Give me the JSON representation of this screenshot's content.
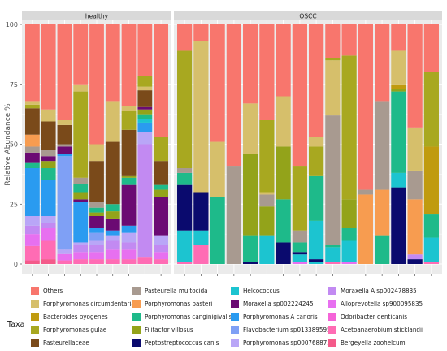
{
  "chart_data": {
    "type": "bar",
    "stacked": true,
    "ylabel": "Relative Abundance  %",
    "ylim": [
      0,
      100
    ],
    "yticks": [
      "0",
      "25",
      "50",
      "75",
      "100"
    ],
    "grid": true,
    "legend_position": "bottom",
    "legend_title": "Taxa",
    "facets": [
      "healthy",
      "OSCC"
    ],
    "taxa": [
      {
        "name": "Others",
        "color": "#F8766D"
      },
      {
        "name": "Porphyromonas circumdentaria",
        "color": "#D6BF6B"
      },
      {
        "name": "Bacteroides pyogenes",
        "color": "#C09B0F"
      },
      {
        "name": "Porphyromonas gulae",
        "color": "#A8A820"
      },
      {
        "name": "Pasteurellaceae",
        "color": "#7A4A1A"
      },
      {
        "name": "Pasteurella multocida",
        "color": "#A89A90"
      },
      {
        "name": "Porphyromonas pasteri",
        "color": "#F79C50"
      },
      {
        "name": "Porphyromonas canginigivalis",
        "color": "#1EBA8A"
      },
      {
        "name": "Filifactor villosus",
        "color": "#93A31A"
      },
      {
        "name": "Peptostreptococcus canis",
        "color": "#0A0A6E"
      },
      {
        "name": "Helcococcus",
        "color": "#1CC4D0"
      },
      {
        "name": "Moraxella sp002224245",
        "color": "#6B0A73"
      },
      {
        "name": "Porphyromonas A canoris",
        "color": "#2A9BF0"
      },
      {
        "name": "Flavobacterium sp013389595",
        "color": "#7FA0F5"
      },
      {
        "name": "Porphyromonas sp000768875",
        "color": "#B9A6F7"
      },
      {
        "name": "Moraxella A sp002478835",
        "color": "#C28AF2"
      },
      {
        "name": "Alloprevotella sp900095835",
        "color": "#E770F0"
      },
      {
        "name": "Odoribacter denticanis",
        "color": "#F564D8"
      },
      {
        "name": "Acetoanaerobium sticklandii",
        "color": "#FF6CB4"
      },
      {
        "name": "Bergeyella zoohelcum",
        "color": "#F45A8A"
      }
    ],
    "samples": [
      {
        "facet": "healthy",
        "segments": [
          [
            "Bergeyella zoohelcum",
            1.5
          ],
          [
            "Acetoanaerobium sticklandii",
            6
          ],
          [
            "Alloprevotella sp900095835",
            5
          ],
          [
            "Moraxella A sp002478835",
            3.5
          ],
          [
            "Porphyromonas sp000768875",
            4
          ],
          [
            "Porphyromonas A canoris",
            20
          ],
          [
            "Porphyromonas canginigivalis",
            2.5
          ],
          [
            "Moraxella sp002224245",
            4
          ],
          [
            "Pasteurella multocida",
            2.5
          ],
          [
            "Porphyromonas pasteri",
            5
          ],
          [
            "Pasteurellaceae",
            11
          ],
          [
            "Porphyromonas gulae",
            1.5
          ],
          [
            "Porphyromonas circumdentaria",
            1.5
          ],
          [
            "Others",
            32
          ]
        ]
      },
      {
        "facet": "healthy",
        "segments": [
          [
            "Bergeyella zoohelcum",
            2
          ],
          [
            "Acetoanaerobium sticklandii",
            8
          ],
          [
            "Alloprevotella sp900095835",
            5
          ],
          [
            "Moraxella A sp002478835",
            2
          ],
          [
            "Porphyromonas sp000768875",
            3
          ],
          [
            "Porphyromonas A canoris",
            15
          ],
          [
            "Porphyromonas canginigivalis",
            5
          ],
          [
            "Filifactor villosus",
            3
          ],
          [
            "Moraxella sp002224245",
            2
          ],
          [
            "Pasteurella multocida",
            2.5
          ],
          [
            "Pasteurellaceae",
            12
          ],
          [
            "Porphyromonas circumdentaria",
            5
          ],
          [
            "Others",
            35.5
          ]
        ]
      },
      {
        "facet": "healthy",
        "segments": [
          [
            "Acetoanaerobium sticklandii",
            1.5
          ],
          [
            "Alloprevotella sp900095835",
            3
          ],
          [
            "Porphyromonas sp000768875",
            1.5
          ],
          [
            "Flavobacterium sp013389595",
            39
          ],
          [
            "Porphyromonas A canoris",
            1
          ],
          [
            "Moraxella sp002224245",
            3
          ],
          [
            "Pasteurella multocida",
            1
          ],
          [
            "Pasteurellaceae",
            8
          ],
          [
            "Porphyromonas circumdentaria",
            2
          ],
          [
            "Others",
            40
          ]
        ]
      },
      {
        "facet": "healthy",
        "segments": [
          [
            "Acetoanaerobium sticklandii",
            2
          ],
          [
            "Alloprevotella sp900095835",
            3
          ],
          [
            "Moraxella A sp002478835",
            3
          ],
          [
            "Porphyromonas sp000768875",
            1
          ],
          [
            "Porphyromonas A canoris",
            17
          ],
          [
            "Moraxella sp002224245",
            1
          ],
          [
            "Filifactor villosus",
            3
          ],
          [
            "Porphyromonas canginigivalis",
            3.5
          ],
          [
            "Pasteurella multocida",
            2.5
          ],
          [
            "Porphyromonas gulae",
            36
          ],
          [
            "Porphyromonas circumdentaria",
            3
          ],
          [
            "Others",
            25
          ]
        ]
      },
      {
        "facet": "healthy",
        "segments": [
          [
            "Acetoanaerobium sticklandii",
            2
          ],
          [
            "Alloprevotella sp900095835",
            3
          ],
          [
            "Moraxella A sp002478835",
            3
          ],
          [
            "Porphyromonas sp000768875",
            2
          ],
          [
            "Flavobacterium sp013389595",
            3
          ],
          [
            "Porphyromonas A canoris",
            2
          ],
          [
            "Moraxella sp002224245",
            5
          ],
          [
            "Filifactor villosus",
            1.5
          ],
          [
            "Porphyromonas canginigivalis",
            2
          ],
          [
            "Pasteurella multocida",
            2.5
          ],
          [
            "Pasteurellaceae",
            17
          ],
          [
            "Porphyromonas circumdentaria",
            7
          ],
          [
            "Others",
            50
          ]
        ]
      },
      {
        "facet": "healthy",
        "segments": [
          [
            "Acetoanaerobium sticklandii",
            2
          ],
          [
            "Alloprevotella sp900095835",
            4
          ],
          [
            "Moraxella A sp002478835",
            4
          ],
          [
            "Porphyromonas sp000768875",
            2
          ],
          [
            "Porphyromonas A canoris",
            2
          ],
          [
            "Moraxella sp002224245",
            5
          ],
          [
            "Filifactor villosus",
            3
          ],
          [
            "Porphyromonas canginigivalis",
            3
          ],
          [
            "Pasteurellaceae",
            26
          ],
          [
            "Porphyromonas circumdentaria",
            17
          ],
          [
            "Others",
            32
          ]
        ]
      },
      {
        "facet": "healthy",
        "segments": [
          [
            "Acetoanaerobium sticklandii",
            2
          ],
          [
            "Alloprevotella sp900095835",
            4
          ],
          [
            "Moraxella A sp002478835",
            3
          ],
          [
            "Porphyromonas sp000768875",
            4
          ],
          [
            "Porphyromonas A canoris",
            3
          ],
          [
            "Moraxella sp002224245",
            17
          ],
          [
            "Porphyromonas canginigivalis",
            3
          ],
          [
            "Filifactor villosus",
            1
          ],
          [
            "Pasteurellaceae",
            19
          ],
          [
            "Porphyromonas gulae",
            8
          ],
          [
            "Porphyromonas circumdentaria",
            2
          ],
          [
            "Others",
            34
          ]
        ]
      },
      {
        "facet": "healthy",
        "segments": [
          [
            "Acetoanaerobium sticklandii",
            3
          ],
          [
            "Moraxella A sp002478835",
            47
          ],
          [
            "Porphyromonas sp000768875",
            5
          ],
          [
            "Porphyromonas A canoris",
            4
          ],
          [
            "Helcococcus",
            1.5
          ],
          [
            "Porphyromonas canginigivalis",
            2
          ],
          [
            "Filifactor villosus",
            2
          ],
          [
            "Moraxella sp002224245",
            1
          ],
          [
            "Pasteurellaceae",
            7
          ],
          [
            "Porphyromonas circumdentaria",
            1.5
          ],
          [
            "Porphyromonas gulae",
            4.5
          ],
          [
            "Others",
            21.5
          ]
        ]
      },
      {
        "facet": "healthy",
        "segments": [
          [
            "Acetoanaerobium sticklandii",
            2
          ],
          [
            "Alloprevotella sp900095835",
            3
          ],
          [
            "Moraxella A sp002478835",
            3
          ],
          [
            "Porphyromonas sp000768875",
            4
          ],
          [
            "Moraxella sp002224245",
            16
          ],
          [
            "Filifactor villosus",
            3
          ],
          [
            "Porphyromonas canginigivalis",
            2
          ],
          [
            "Pasteurellaceae",
            10
          ],
          [
            "Porphyromonas gulae",
            10
          ],
          [
            "Others",
            47
          ]
        ]
      },
      {
        "facet": "OSCC",
        "segments": [
          [
            "Acetoanaerobium sticklandii",
            1
          ],
          [
            "Helcococcus",
            13
          ],
          [
            "Peptostreptococcus canis",
            19
          ],
          [
            "Porphyromonas canginigivalis",
            5
          ],
          [
            "Pasteurella multocida",
            2
          ],
          [
            "Porphyromonas gulae",
            49
          ],
          [
            "Others",
            11
          ]
        ]
      },
      {
        "facet": "OSCC",
        "segments": [
          [
            "Acetoanaerobium sticklandii",
            8
          ],
          [
            "Helcococcus",
            6
          ],
          [
            "Peptostreptococcus canis",
            16
          ],
          [
            "Porphyromonas circumdentaria",
            63
          ],
          [
            "Others",
            7
          ]
        ]
      },
      {
        "facet": "OSCC",
        "segments": [
          [
            "Porphyromonas canginigivalis",
            28
          ],
          [
            "Porphyromonas circumdentaria",
            23
          ],
          [
            "Others",
            49
          ]
        ]
      },
      {
        "facet": "OSCC",
        "segments": [
          [
            "Pasteurella multocida",
            41
          ],
          [
            "Others",
            59
          ]
        ]
      },
      {
        "facet": "OSCC",
        "segments": [
          [
            "Peptostreptococcus canis",
            1
          ],
          [
            "Porphyromonas canginigivalis",
            11
          ],
          [
            "Filifactor villosus",
            34
          ],
          [
            "Porphyromonas circumdentaria",
            21
          ],
          [
            "Others",
            33
          ]
        ]
      },
      {
        "facet": "OSCC",
        "segments": [
          [
            "Helcococcus",
            12
          ],
          [
            "Filifactor villosus",
            12
          ],
          [
            "Pasteurella multocida",
            5
          ],
          [
            "Porphyromonas circumdentaria",
            1
          ],
          [
            "Porphyromonas gulae",
            30
          ],
          [
            "Others",
            40
          ]
        ]
      },
      {
        "facet": "OSCC",
        "segments": [
          [
            "Peptostreptococcus canis",
            9
          ],
          [
            "Porphyromonas canginigivalis",
            18
          ],
          [
            "Filifactor villosus",
            22
          ],
          [
            "Porphyromonas circumdentaria",
            21
          ],
          [
            "Others",
            30
          ]
        ]
      },
      {
        "facet": "OSCC",
        "segments": [
          [
            "Alloprevotella sp900095835",
            1
          ],
          [
            "Helcococcus",
            3
          ],
          [
            "Peptostreptococcus canis",
            1
          ],
          [
            "Porphyromonas canginigivalis",
            4
          ],
          [
            "Pasteurella multocida",
            5
          ],
          [
            "Porphyromonas gulae",
            27
          ],
          [
            "Others",
            59
          ]
        ]
      },
      {
        "facet": "OSCC",
        "segments": [
          [
            "Helcococcus",
            1
          ],
          [
            "Peptostreptococcus canis",
            1
          ],
          [
            "Helcococcus",
            16
          ],
          [
            "Porphyromonas canginigivalis",
            19
          ],
          [
            "Porphyromonas gulae",
            12
          ],
          [
            "Porphyromonas circumdentaria",
            4
          ],
          [
            "Others",
            47
          ]
        ]
      },
      {
        "facet": "OSCC",
        "segments": [
          [
            "Acetoanaerobium sticklandii",
            1
          ],
          [
            "Helcococcus",
            6
          ],
          [
            "Porphyromonas canginigivalis",
            1
          ],
          [
            "Pasteurella multocida",
            54
          ],
          [
            "Porphyromonas circumdentaria",
            23
          ],
          [
            "Porphyromonas gulae",
            1
          ],
          [
            "Others",
            14
          ]
        ]
      },
      {
        "facet": "OSCC",
        "segments": [
          [
            "Alloprevotella sp900095835",
            1
          ],
          [
            "Helcococcus",
            9
          ],
          [
            "Porphyromonas canginigivalis",
            5
          ],
          [
            "Filifactor villosus",
            12
          ],
          [
            "Porphyromonas gulae",
            60
          ],
          [
            "Others",
            13
          ]
        ]
      },
      {
        "facet": "OSCC",
        "segments": [
          [
            "Porphyromonas pasteri",
            29
          ],
          [
            "Pasteurella multocida",
            2
          ],
          [
            "Others",
            69
          ]
        ]
      },
      {
        "facet": "OSCC",
        "segments": [
          [
            "Porphyromonas canginigivalis",
            12
          ],
          [
            "Porphyromonas pasteri",
            19
          ],
          [
            "Pasteurella multocida",
            37
          ],
          [
            "Others",
            32
          ]
        ]
      },
      {
        "facet": "OSCC",
        "segments": [
          [
            "Peptostreptococcus canis",
            32
          ],
          [
            "Helcococcus",
            6
          ],
          [
            "Porphyromonas canginigivalis",
            34
          ],
          [
            "Filifactor villosus",
            1
          ],
          [
            "Bacteroides pyogenes",
            2
          ],
          [
            "Porphyromonas circumdentaria",
            14
          ],
          [
            "Others",
            11
          ]
        ]
      },
      {
        "facet": "OSCC",
        "segments": [
          [
            "Peptostreptococcus canis",
            2
          ],
          [
            "Moraxella A sp002478835",
            2
          ],
          [
            "Porphyromonas pasteri",
            23
          ],
          [
            "Pasteurella multocida",
            12
          ],
          [
            "Porphyromonas circumdentaria",
            18
          ],
          [
            "Others",
            43
          ]
        ]
      },
      {
        "facet": "OSCC",
        "segments": [
          [
            "Acetoanaerobium sticklandii",
            1
          ],
          [
            "Helcococcus",
            10
          ],
          [
            "Porphyromonas canginigivalis",
            10
          ],
          [
            "Bacteroides pyogenes",
            28
          ],
          [
            "Porphyromonas gulae",
            31
          ],
          [
            "Others",
            20
          ]
        ]
      }
    ]
  }
}
